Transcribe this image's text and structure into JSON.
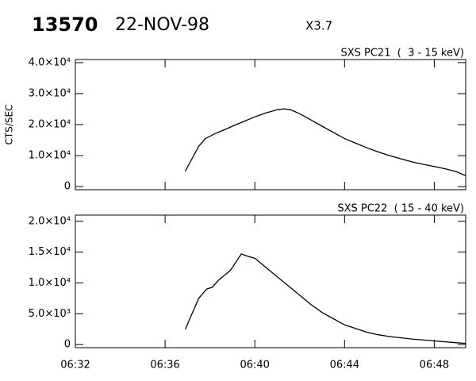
{
  "header": {
    "event": "13570",
    "date": "22-NOV-98",
    "class": "X3.7"
  },
  "chart_data": [
    {
      "type": "line",
      "subtitle": "SXS PC21  (  3 - 15 keV)",
      "ylabel": "CTS/SEC",
      "color": "#000000",
      "x": [
        396.9,
        397.2,
        397.5,
        397.8,
        398.2,
        398.6,
        399.0,
        399.5,
        400.0,
        400.5,
        401.0,
        401.3,
        401.6,
        402.0,
        402.5,
        403.0,
        403.5,
        404.0,
        404.5,
        405.0,
        405.5,
        406.0,
        406.5,
        407.0,
        407.5,
        408.0,
        408.5,
        409.0,
        409.4
      ],
      "values": [
        5000,
        9000,
        13000,
        15500,
        17000,
        18200,
        19500,
        21000,
        22500,
        23800,
        24800,
        25100,
        24800,
        23500,
        21500,
        19500,
        17500,
        15500,
        14000,
        12500,
        11200,
        10000,
        9000,
        8000,
        7200,
        6500,
        5700,
        4800,
        3500
      ],
      "xlim": [
        392,
        409.4
      ],
      "ylim": [
        -1000,
        41000
      ],
      "yticks": [
        0,
        {
          "value": 10000,
          "label": "1.0×10⁴"
        },
        {
          "value": 20000,
          "label": "2.0×10⁴"
        },
        {
          "value": 30000,
          "label": "3.0×10⁴"
        },
        {
          "value": 40000,
          "label": "4.0×10⁴"
        }
      ]
    },
    {
      "type": "line",
      "subtitle": "SXS PC22  ( 15 - 40 keV)",
      "color": "#000000",
      "x": [
        396.9,
        397.2,
        397.5,
        397.85,
        398.1,
        398.4,
        398.9,
        399.0,
        399.4,
        399.7,
        400.0,
        400.5,
        401.0,
        401.5,
        402.0,
        402.5,
        403.0,
        403.5,
        404.0,
        404.5,
        405.0,
        405.5,
        406.0,
        407.0,
        408.0,
        409.0,
        409.4
      ],
      "values": [
        2500,
        5000,
        7500,
        9000,
        9300,
        10500,
        12000,
        12500,
        14700,
        14300,
        14000,
        12500,
        11000,
        9500,
        8000,
        6500,
        5200,
        4200,
        3200,
        2600,
        2000,
        1600,
        1300,
        900,
        600,
        300,
        200
      ],
      "xlim": [
        392,
        409.4
      ],
      "ylim": [
        -500,
        21000
      ],
      "xticks": [
        {
          "value": 392,
          "label": "06:32"
        },
        {
          "value": 396,
          "label": "06:36"
        },
        {
          "value": 400,
          "label": "06:40"
        },
        {
          "value": 404,
          "label": "06:44"
        },
        {
          "value": 408,
          "label": "06:48"
        }
      ],
      "yticks": [
        0,
        {
          "value": 5000,
          "label": "5.0×10³"
        },
        {
          "value": 10000,
          "label": "1.0×10⁴"
        },
        {
          "value": 15000,
          "label": "1.5×10⁴"
        },
        {
          "value": 20000,
          "label": "2.0×10⁴"
        }
      ]
    }
  ]
}
